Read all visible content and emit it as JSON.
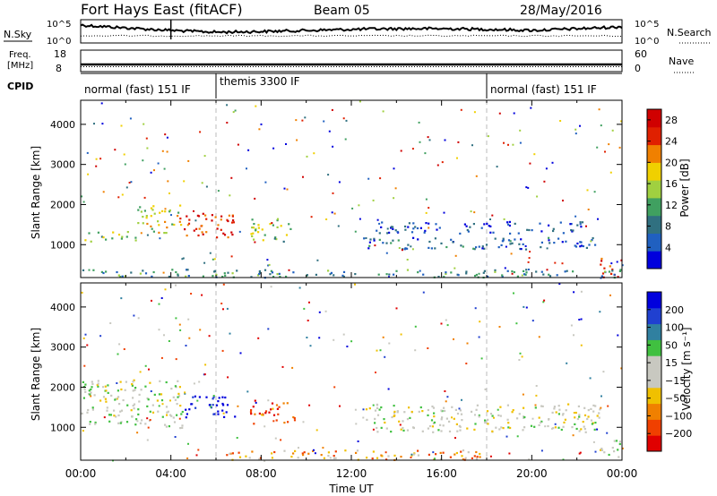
{
  "header": {
    "station": "Fort Hays East (fitACF)",
    "beam": "Beam 05",
    "date": "28/May/2016"
  },
  "nsky_panel": {
    "left_label": "N.Sky",
    "right_label": "N.Search",
    "left_ticks": [
      "10^5",
      "10^0"
    ],
    "right_ticks": [
      "10^5",
      "10^0"
    ]
  },
  "freq_panel": {
    "left_label_1": "Freq.",
    "left_label_2": "[MHz]",
    "right_label": "Nave",
    "left_ticks": [
      "18",
      "8"
    ],
    "right_ticks": [
      "60",
      "0"
    ]
  },
  "cpid": {
    "label": "CPID",
    "segments": [
      {
        "label": "normal (fast) 151 IF",
        "start_hour": 0
      },
      {
        "label": "themis 3300 IF",
        "start_hour": 6
      },
      {
        "label": "normal (fast) 151 IF",
        "start_hour": 18
      }
    ]
  },
  "colors": {
    "power": [
      "#0000dd",
      "#2060c0",
      "#307080",
      "#40a060",
      "#a0d040",
      "#f0d000",
      "#f08000",
      "#e02000",
      "#d00000"
    ],
    "velocity": [
      "#e00000",
      "#f04000",
      "#f08000",
      "#f0c000",
      "#c8c8c0",
      "#c8c8c0",
      "#40c040",
      "#3080a0",
      "#2040d0",
      "#0000dd"
    ]
  },
  "chart_data": [
    {
      "type": "heatmap",
      "name": "power-panel",
      "ylabel": "Slant Range [km]",
      "x_range_hours": [
        0,
        24
      ],
      "y_range_km": [
        180,
        4600
      ],
      "yticks": [
        "1000",
        "2000",
        "3000",
        "4000"
      ],
      "colorbar": {
        "label": "Power [dB]",
        "ticks": [
          "4",
          "8",
          "12",
          "16",
          "20",
          "24",
          "28"
        ],
        "range": [
          0,
          30
        ]
      },
      "scatter_features": [
        {
          "t0": 0,
          "t1": 2.5,
          "r0": 1100,
          "r1": 1350,
          "level": 0.45
        },
        {
          "t0": 2.5,
          "t1": 4.6,
          "r0": 1300,
          "r1": 2000,
          "level": 0.55
        },
        {
          "t0": 4.0,
          "t1": 6.8,
          "r0": 1200,
          "r1": 1800,
          "level": 0.85
        },
        {
          "t0": 7.5,
          "t1": 9.5,
          "r0": 1100,
          "r1": 1700,
          "level": 0.5
        },
        {
          "t0": 12.5,
          "t1": 23,
          "r0": 900,
          "r1": 1200,
          "level": 0.2
        },
        {
          "t0": 13,
          "t1": 22.5,
          "r0": 1300,
          "r1": 1600,
          "level": 0.15
        },
        {
          "t0": 23,
          "t1": 24,
          "r0": 200,
          "r1": 700,
          "level": 0.85
        },
        {
          "t0": 0,
          "t1": 24,
          "r0": 200,
          "r1": 400,
          "level": 0.3
        }
      ]
    },
    {
      "type": "heatmap",
      "name": "velocity-panel",
      "ylabel": "Slant Range [km]",
      "xlabel": "Time UT",
      "x_range_hours": [
        0,
        24
      ],
      "y_range_km": [
        180,
        4600
      ],
      "yticks": [
        "1000",
        "2000",
        "3000",
        "4000"
      ],
      "xticks": [
        "00:00",
        "04:00",
        "08:00",
        "12:00",
        "16:00",
        "20:00",
        "00:00"
      ],
      "colorbar": {
        "label": "Velocity [m s⁻¹]",
        "ticks": [
          "200",
          "100",
          "50",
          "15",
          "−15",
          "−50",
          "−100",
          "−200"
        ],
        "range": [
          -250,
          250
        ]
      },
      "scatter_features": [
        {
          "t0": 0,
          "t1": 4.5,
          "r0": 1000,
          "r1": 2200,
          "level": 0.5
        },
        {
          "t0": 4.6,
          "t1": 6.8,
          "r0": 1200,
          "r1": 1800,
          "level": 0.95
        },
        {
          "t0": 7.5,
          "t1": 9.5,
          "r0": 1100,
          "r1": 1700,
          "level": 0.15
        },
        {
          "t0": 12.5,
          "t1": 23,
          "r0": 900,
          "r1": 1600,
          "level": 0.5
        },
        {
          "t0": 23,
          "t1": 24,
          "r0": 200,
          "r1": 700,
          "level": 0.5
        },
        {
          "t0": 6,
          "t1": 18,
          "r0": 200,
          "r1": 450,
          "level": 0.3
        }
      ]
    }
  ]
}
